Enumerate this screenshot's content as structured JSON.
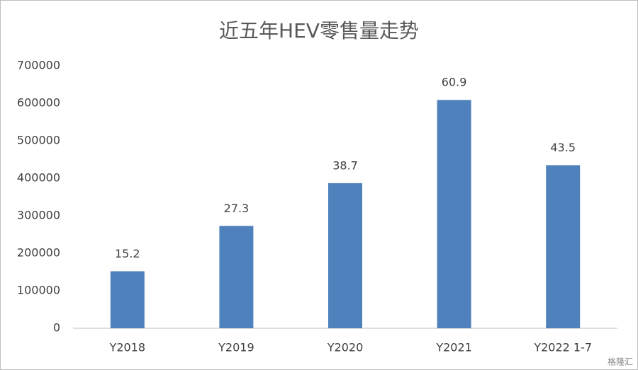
{
  "chart_data": {
    "type": "bar",
    "title": "近五年HEV零售量走势",
    "categories": [
      "Y2018",
      "Y2019",
      "Y2020",
      "Y2021",
      "Y2022 1-7"
    ],
    "values": [
      152000,
      273000,
      387000,
      609000,
      435000
    ],
    "value_labels": [
      "15.2",
      "27.3",
      "38.7",
      "60.9",
      "43.5"
    ],
    "color": "#4f81bd",
    "ylim": [
      0,
      700000
    ],
    "yticks": [
      0,
      100000,
      200000,
      300000,
      400000,
      500000,
      600000,
      700000
    ],
    "grid": false,
    "watermark": "格隆汇"
  }
}
